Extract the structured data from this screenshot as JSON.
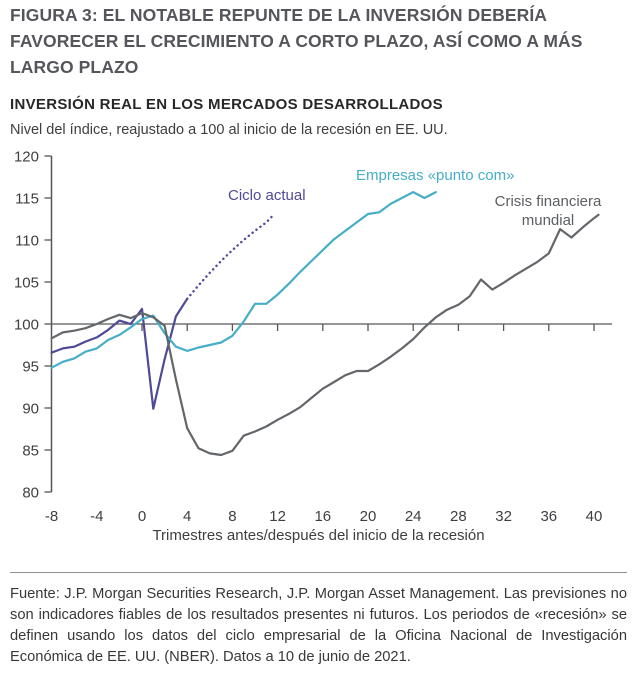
{
  "header": {
    "title": "FIGURA 3: EL NOTABLE REPUNTE DE LA INVERSIÓN DEBERÍA FAVORECER EL CRECIMIENTO A CORTO PLAZO, ASÍ COMO A MÁS LARGO PLAZO",
    "subtitle": "INVERSIÓN REAL EN LOS MERCADOS DESARROLLADOS",
    "note": "Nivel del índice, reajustado a 100 al inicio de la recesión en EE. UU."
  },
  "chart_data": {
    "type": "line",
    "title": "INVERSIÓN REAL EN LOS MERCADOS DESARROLLADOS",
    "xlabel": "Trimestres antes/después del inicio de la recesión",
    "ylabel": "Nivel del índice, reajustado a 100 al inicio de la recesión en EE. UU.",
    "xlim": [
      -8,
      42
    ],
    "ylim": [
      80,
      120
    ],
    "x_ticks": [
      -8,
      -4,
      0,
      4,
      8,
      12,
      16,
      20,
      24,
      28,
      32,
      36,
      40
    ],
    "y_ticks": [
      80,
      85,
      90,
      95,
      100,
      105,
      110,
      115,
      120
    ],
    "baseline": 100,
    "grid": false,
    "legend_position": "inline-labels",
    "axis_color": "#55575a",
    "series": [
      {
        "name": "Ciclo actual",
        "color": "#4e4a96",
        "style": "solid-then-dotted-forecast",
        "points": [
          [
            -8,
            96.6
          ],
          [
            -7,
            97.1
          ],
          [
            -6,
            97.3
          ],
          [
            -5,
            97.9
          ],
          [
            -4,
            98.4
          ],
          [
            -3,
            99.3
          ],
          [
            -2,
            100.4
          ],
          [
            -1,
            100.0
          ],
          [
            0,
            101.8
          ],
          [
            1,
            89.9
          ],
          [
            2,
            95.8
          ],
          [
            3,
            100.9
          ],
          [
            4,
            103.0
          ]
        ],
        "forecast_dotted": [
          [
            4,
            103.0
          ],
          [
            5,
            104.6
          ],
          [
            6,
            106.1
          ],
          [
            7,
            107.5
          ],
          [
            8,
            108.8
          ],
          [
            9,
            110.0
          ],
          [
            10,
            111.1
          ],
          [
            11,
            112.1
          ],
          [
            11.5,
            112.8
          ]
        ]
      },
      {
        "name": "Empresas «punto com»",
        "color": "#46aec7",
        "style": "solid",
        "points": [
          [
            -8,
            94.8
          ],
          [
            -7,
            95.5
          ],
          [
            -6,
            95.9
          ],
          [
            -5,
            96.7
          ],
          [
            -4,
            97.1
          ],
          [
            -3,
            98.1
          ],
          [
            -2,
            98.7
          ],
          [
            -1,
            99.6
          ],
          [
            0,
            100.6
          ],
          [
            1,
            101.0
          ],
          [
            2,
            98.9
          ],
          [
            3,
            97.3
          ],
          [
            4,
            96.8
          ],
          [
            5,
            97.2
          ],
          [
            6,
            97.5
          ],
          [
            7,
            97.8
          ],
          [
            8,
            98.6
          ],
          [
            9,
            100.3
          ],
          [
            10,
            102.4
          ],
          [
            11,
            102.4
          ],
          [
            12,
            103.5
          ],
          [
            13,
            104.8
          ],
          [
            14,
            106.2
          ],
          [
            15,
            107.5
          ],
          [
            16,
            108.8
          ],
          [
            17,
            110.1
          ],
          [
            18,
            111.1
          ],
          [
            19,
            112.1
          ],
          [
            20,
            113.1
          ],
          [
            21,
            113.3
          ],
          [
            22,
            114.3
          ],
          [
            23,
            115.0
          ],
          [
            24,
            115.7
          ],
          [
            25,
            115.0
          ],
          [
            26,
            115.7
          ]
        ]
      },
      {
        "name": "Crisis financiera mundial",
        "color": "#63666a",
        "style": "solid",
        "points": [
          [
            -8,
            98.3
          ],
          [
            -7,
            99.0
          ],
          [
            -6,
            99.2
          ],
          [
            -5,
            99.5
          ],
          [
            -4,
            100.0
          ],
          [
            -3,
            100.6
          ],
          [
            -2,
            101.1
          ],
          [
            -1,
            100.7
          ],
          [
            0,
            101.3
          ],
          [
            1,
            100.8
          ],
          [
            2,
            99.8
          ],
          [
            3,
            93.4
          ],
          [
            4,
            87.6
          ],
          [
            5,
            85.2
          ],
          [
            6,
            84.6
          ],
          [
            7,
            84.4
          ],
          [
            8,
            84.9
          ],
          [
            9,
            86.7
          ],
          [
            10,
            87.2
          ],
          [
            11,
            87.8
          ],
          [
            12,
            88.6
          ],
          [
            13,
            89.3
          ],
          [
            14,
            90.1
          ],
          [
            15,
            91.2
          ],
          [
            16,
            92.3
          ],
          [
            17,
            93.1
          ],
          [
            18,
            93.9
          ],
          [
            19,
            94.4
          ],
          [
            20,
            94.4
          ],
          [
            21,
            95.2
          ],
          [
            22,
            96.1
          ],
          [
            23,
            97.1
          ],
          [
            24,
            98.2
          ],
          [
            25,
            99.6
          ],
          [
            26,
            100.8
          ],
          [
            27,
            101.7
          ],
          [
            28,
            102.3
          ],
          [
            29,
            103.3
          ],
          [
            30,
            105.3
          ],
          [
            31,
            104.1
          ],
          [
            32,
            104.9
          ],
          [
            33,
            105.8
          ],
          [
            34,
            106.6
          ],
          [
            35,
            107.4
          ],
          [
            36,
            108.4
          ],
          [
            37,
            111.3
          ],
          [
            38,
            110.3
          ],
          [
            39,
            111.5
          ],
          [
            40,
            112.6
          ],
          [
            40.4,
            113.0
          ]
        ]
      }
    ]
  },
  "footer": {
    "source": "Fuente: J.P. Morgan Securities Research, J.P. Morgan Asset Management. Las previsiones no son indicadores fiables de los resultados presentes ni futuros. Los periodos de «recesión» se definen usando los datos del ciclo empresarial de la Oficina Nacional de Investigación Económica de EE. UU. (NBER). Datos a 10 de junio de 2021."
  }
}
